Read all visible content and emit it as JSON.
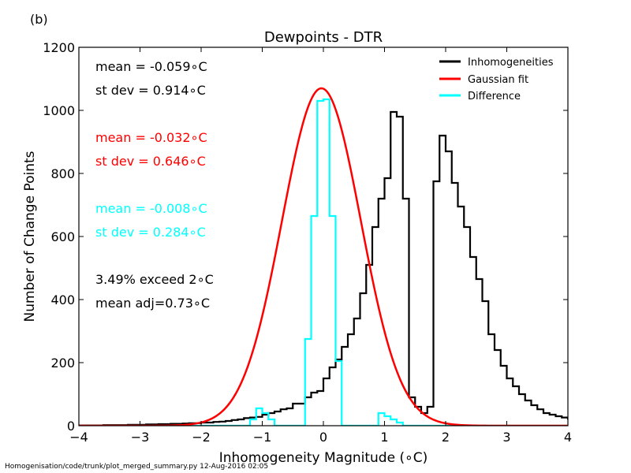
{
  "panel_label": "(b)",
  "footer": "Homogenisation/code/trunk/plot_merged_summary.py   12-Aug-2016 02:05",
  "colors": {
    "inhomogeneities": "#000000",
    "gaussian": "#ff0000",
    "difference": "#00ffff"
  },
  "chart_data": {
    "type": "line",
    "title": "Dewpoints - DTR",
    "xlabel": "Inhomogeneity Magnitude (∘C)",
    "ylabel": "Number of Change Points",
    "xlim": [
      -4,
      4
    ],
    "ylim": [
      0,
      1200
    ],
    "xticks": [
      -4,
      -3,
      -2,
      -1,
      0,
      1,
      2,
      3,
      4
    ],
    "yticks": [
      0,
      200,
      400,
      600,
      800,
      1000,
      1200
    ],
    "xtick_labels": [
      "−4",
      "−3",
      "−2",
      "−1",
      "0",
      "1",
      "2",
      "3",
      "4"
    ],
    "ytick_labels": [
      "0",
      "200",
      "400",
      "600",
      "800",
      "1000",
      "1200"
    ],
    "legend_position": "top-right",
    "grid": false,
    "bin_width": 0.1,
    "series": [
      {
        "name": "Inhomogeneities",
        "kind": "step",
        "color": "#000000",
        "bin_edges_start": -4.0,
        "values": [
          1,
          1,
          1,
          1,
          2,
          2,
          2,
          2,
          3,
          3,
          3,
          4,
          4,
          5,
          5,
          6,
          6,
          7,
          8,
          8,
          10,
          10,
          12,
          13,
          15,
          18,
          20,
          24,
          26,
          28,
          35,
          40,
          45,
          52,
          55,
          70,
          70,
          90,
          105,
          110,
          150,
          185,
          210,
          250,
          290,
          340,
          420,
          510,
          630,
          720,
          785,
          995,
          980,
          720,
          90,
          60,
          40,
          60,
          775,
          920,
          870,
          770,
          695,
          630,
          535,
          465,
          395,
          290,
          240,
          190,
          150,
          125,
          100,
          80,
          65,
          52,
          40,
          35,
          30,
          26,
          22,
          20,
          18,
          16,
          14,
          12,
          10,
          9,
          8,
          7,
          6,
          5,
          5,
          4,
          4,
          3,
          3,
          2,
          2,
          1
        ]
      },
      {
        "name": "Gaussian fit",
        "kind": "line",
        "color": "#ff0000",
        "mean": -0.032,
        "sd": 0.646,
        "peak": 1070
      },
      {
        "name": "Difference",
        "kind": "step",
        "color": "#00ffff",
        "bin_edges_start": -4.0,
        "values": [
          0,
          0,
          0,
          0,
          0,
          0,
          0,
          0,
          0,
          0,
          0,
          0,
          0,
          0,
          0,
          0,
          0,
          0,
          0,
          0,
          0,
          0,
          0,
          0,
          0,
          0,
          0,
          0,
          0,
          0,
          0,
          0,
          0,
          0,
          0,
          0,
          0,
          0,
          0,
          0,
          0,
          0,
          0,
          0,
          0,
          0,
          0,
          0,
          0,
          0,
          0,
          0,
          0,
          0,
          0,
          0,
          0,
          0,
          0,
          0,
          0,
          0,
          0,
          0,
          0,
          0,
          0,
          0,
          0,
          0,
          0,
          0,
          0,
          0,
          0,
          0,
          0,
          0,
          0,
          0,
          0,
          0,
          0,
          0,
          0,
          0,
          0,
          0,
          0,
          0,
          0,
          0,
          0,
          0,
          0,
          0,
          0,
          0,
          0,
          0
        ],
        "overrides": [
          {
            "x0": -1.2,
            "x1": -1.1,
            "y": 20
          },
          {
            "x0": -1.1,
            "x1": -1.0,
            "y": 55
          },
          {
            "x0": -1.0,
            "x1": -0.9,
            "y": 40
          },
          {
            "x0": -0.9,
            "x1": -0.8,
            "y": 20
          },
          {
            "x0": -0.3,
            "x1": -0.2,
            "y": 275
          },
          {
            "x0": -0.2,
            "x1": -0.1,
            "y": 665
          },
          {
            "x0": -0.1,
            "x1": 0.0,
            "y": 1030
          },
          {
            "x0": 0.0,
            "x1": 0.1,
            "y": 1035
          },
          {
            "x0": 0.1,
            "x1": 0.2,
            "y": 665
          },
          {
            "x0": 0.2,
            "x1": 0.3,
            "y": 205
          },
          {
            "x0": 0.9,
            "x1": 1.0,
            "y": 40
          },
          {
            "x0": 1.0,
            "x1": 1.1,
            "y": 30
          },
          {
            "x0": 1.1,
            "x1": 1.2,
            "y": 20
          },
          {
            "x0": 1.2,
            "x1": 1.3,
            "y": 10
          }
        ]
      }
    ],
    "annotations": [
      {
        "text": "mean = -0.059∘C",
        "color": "#000000"
      },
      {
        "text": "st dev =  0.914∘C",
        "color": "#000000"
      },
      {
        "text": "mean = -0.032∘C",
        "color": "#ff0000"
      },
      {
        "text": "st dev =  0.646∘C",
        "color": "#ff0000"
      },
      {
        "text": "mean = -0.008∘C",
        "color": "#00ffff"
      },
      {
        "text": "st dev =  0.284∘C",
        "color": "#00ffff"
      },
      {
        "text": "3.49% exceed 2∘C",
        "color": "#000000"
      },
      {
        "text": "mean adj=0.73∘C",
        "color": "#000000"
      }
    ]
  }
}
